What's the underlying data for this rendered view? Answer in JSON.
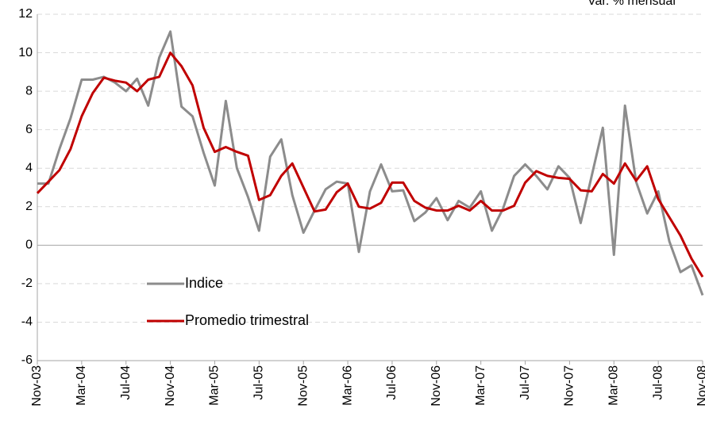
{
  "chart_data": {
    "type": "line",
    "title": "Var. % mensual",
    "categories": [
      "Nov-03",
      null,
      null,
      null,
      "Mar-04",
      null,
      null,
      null,
      "Jul-04",
      null,
      null,
      null,
      "Nov-04",
      null,
      null,
      null,
      "Mar-05",
      null,
      null,
      null,
      "Jul-05",
      null,
      null,
      null,
      "Nov-05",
      null,
      null,
      null,
      "Mar-06",
      null,
      null,
      null,
      "Jul-06",
      null,
      null,
      null,
      "Nov-06",
      null,
      null,
      null,
      "Mar-07",
      null,
      null,
      null,
      "Jul-07",
      null,
      null,
      null,
      "Nov-07",
      null,
      null,
      null,
      "Mar-08",
      null,
      null,
      null,
      "Jul-08",
      null,
      null,
      null,
      "Nov-08"
    ],
    "series": [
      {
        "name": "Indice",
        "color": "#8c8c8c",
        "values": [
          3.2,
          3.2,
          5.0,
          6.6,
          8.6,
          8.6,
          8.75,
          8.45,
          8.0,
          8.65,
          7.25,
          9.75,
          11.1,
          7.2,
          6.7,
          4.8,
          3.1,
          7.5,
          4.0,
          2.5,
          0.75,
          4.6,
          5.5,
          2.6,
          0.65,
          1.8,
          2.9,
          3.3,
          3.2,
          -0.35,
          2.8,
          4.2,
          2.8,
          2.85,
          1.25,
          1.7,
          2.45,
          1.3,
          2.3,
          1.95,
          2.8,
          0.75,
          1.9,
          3.6,
          4.2,
          3.6,
          2.9,
          4.1,
          3.5,
          1.15,
          3.6,
          6.1,
          -0.5,
          7.25,
          3.3,
          1.65,
          2.8,
          0.2,
          -1.4,
          -1.05,
          -2.6
        ]
      },
      {
        "name": "Promedio trimestral",
        "color": "#c00000",
        "values": [
          2.7,
          3.3,
          3.9,
          5.0,
          6.7,
          7.9,
          8.7,
          8.55,
          8.45,
          8.0,
          8.6,
          8.75,
          10.0,
          9.3,
          8.3,
          6.1,
          4.85,
          5.1,
          4.85,
          4.65,
          2.35,
          2.6,
          3.6,
          4.25,
          3.0,
          1.75,
          1.85,
          2.75,
          3.2,
          2.0,
          1.9,
          2.2,
          3.25,
          3.25,
          2.3,
          1.95,
          1.8,
          1.8,
          2.05,
          1.8,
          2.3,
          1.8,
          1.8,
          2.05,
          3.25,
          3.85,
          3.6,
          3.5,
          3.45,
          2.85,
          2.8,
          3.7,
          3.2,
          4.25,
          3.35,
          4.1,
          2.4,
          1.45,
          0.5,
          -0.7,
          -1.65
        ]
      }
    ],
    "ylim": [
      -6,
      12
    ],
    "yticks": [
      -6,
      -4,
      -2,
      0,
      2,
      4,
      6,
      8,
      10,
      12
    ],
    "grid": true,
    "legend": "lower-left"
  }
}
